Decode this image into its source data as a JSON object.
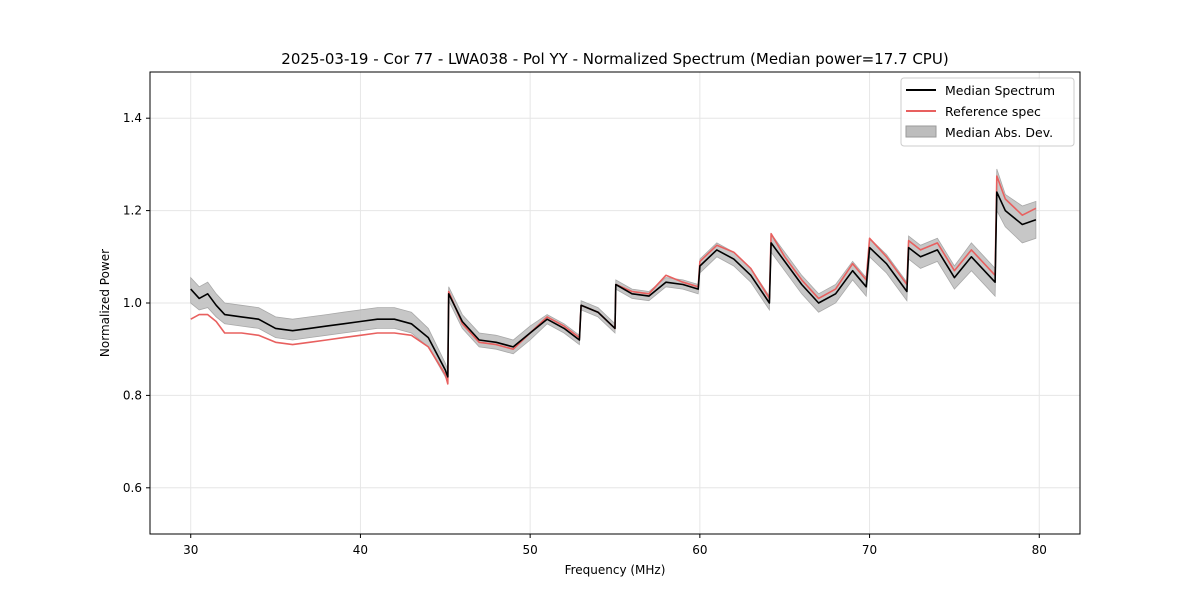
{
  "chart_data": {
    "type": "line",
    "title": "2025-03-19 - Cor 77 - LWA038 - Pol YY - Normalized Spectrum (Median power=17.7 CPU)",
    "xlabel": "Frequency (MHz)",
    "ylabel": "Normalized Power",
    "xlim": [
      27.6,
      82.4
    ],
    "ylim": [
      0.5,
      1.5
    ],
    "xticks": [
      30,
      40,
      50,
      60,
      70,
      80
    ],
    "yticks": [
      0.6,
      0.8,
      1.0,
      1.2,
      1.4
    ],
    "xtick_labels": [
      "30",
      "40",
      "50",
      "60",
      "70",
      "80"
    ],
    "ytick_labels": [
      "0.6",
      "0.8",
      "1.0",
      "1.2",
      "1.4"
    ],
    "grid": true,
    "legend_position": "top-right",
    "colors": {
      "median": "#000000",
      "reference": "#e8605f",
      "mad": "#bdbdbd"
    },
    "series": [
      {
        "name": "Median Spectrum",
        "x": [
          30.0,
          30.5,
          31.0,
          31.5,
          32.0,
          33.0,
          34.0,
          35.0,
          36.0,
          37.0,
          38.0,
          39.0,
          40.0,
          41.0,
          42.0,
          43.0,
          44.0,
          45.0,
          45.15,
          45.2,
          46.0,
          47.0,
          48.0,
          49.0,
          50.0,
          51.0,
          52.0,
          52.9,
          53.0,
          54.0,
          55.0,
          55.05,
          56.0,
          57.0,
          58.0,
          59.0,
          59.9,
          60.0,
          61.0,
          62.0,
          63.0,
          64.1,
          64.2,
          65.0,
          66.0,
          67.0,
          68.0,
          69.0,
          69.8,
          70.0,
          71.0,
          72.2,
          72.3,
          73.0,
          74.0,
          75.0,
          76.0,
          77.4,
          77.5,
          78.0,
          79.0,
          79.8
        ],
        "values": [
          1.03,
          1.01,
          1.02,
          0.995,
          0.975,
          0.97,
          0.965,
          0.945,
          0.94,
          0.945,
          0.95,
          0.955,
          0.96,
          0.965,
          0.965,
          0.955,
          0.925,
          0.855,
          0.84,
          1.02,
          0.96,
          0.92,
          0.915,
          0.905,
          0.935,
          0.965,
          0.945,
          0.92,
          0.995,
          0.98,
          0.945,
          1.04,
          1.02,
          1.015,
          1.045,
          1.04,
          1.03,
          1.08,
          1.115,
          1.095,
          1.06,
          1.0,
          1.13,
          1.09,
          1.04,
          1.0,
          1.02,
          1.07,
          1.035,
          1.12,
          1.085,
          1.025,
          1.12,
          1.1,
          1.115,
          1.055,
          1.1,
          1.045,
          1.24,
          1.2,
          1.17,
          1.18
        ]
      },
      {
        "name": "Reference spec",
        "x": [
          30.0,
          30.5,
          31.0,
          31.5,
          32.0,
          33.0,
          34.0,
          35.0,
          36.0,
          37.0,
          38.0,
          39.0,
          40.0,
          41.0,
          42.0,
          43.0,
          44.0,
          45.0,
          45.15,
          45.2,
          46.0,
          47.0,
          48.0,
          49.0,
          50.0,
          51.0,
          52.0,
          52.9,
          53.0,
          54.0,
          55.0,
          55.05,
          56.0,
          57.0,
          58.0,
          59.0,
          59.9,
          60.0,
          61.0,
          62.0,
          63.0,
          64.1,
          64.2,
          65.0,
          66.0,
          67.0,
          68.0,
          69.0,
          69.8,
          70.0,
          71.0,
          72.2,
          72.3,
          73.0,
          74.0,
          75.0,
          76.0,
          77.4,
          77.5,
          78.0,
          79.0,
          79.8
        ],
        "values": [
          0.965,
          0.975,
          0.975,
          0.96,
          0.935,
          0.935,
          0.93,
          0.915,
          0.91,
          0.915,
          0.92,
          0.925,
          0.93,
          0.935,
          0.935,
          0.93,
          0.905,
          0.845,
          0.825,
          1.025,
          0.955,
          0.915,
          0.91,
          0.9,
          0.935,
          0.97,
          0.95,
          0.925,
          0.995,
          0.98,
          0.945,
          1.04,
          1.025,
          1.02,
          1.06,
          1.045,
          1.035,
          1.09,
          1.125,
          1.11,
          1.075,
          1.01,
          1.15,
          1.1,
          1.05,
          1.01,
          1.03,
          1.085,
          1.05,
          1.14,
          1.1,
          1.04,
          1.135,
          1.115,
          1.13,
          1.07,
          1.115,
          1.06,
          1.275,
          1.225,
          1.19,
          1.205
        ]
      }
    ],
    "mad_band": {
      "name": "Median Abs. Dev.",
      "x": [
        30.0,
        30.5,
        31.0,
        31.5,
        32.0,
        33.0,
        34.0,
        35.0,
        36.0,
        37.0,
        38.0,
        39.0,
        40.0,
        41.0,
        42.0,
        43.0,
        44.0,
        45.0,
        45.15,
        45.2,
        46.0,
        47.0,
        48.0,
        49.0,
        50.0,
        51.0,
        52.0,
        52.9,
        53.0,
        54.0,
        55.0,
        55.05,
        56.0,
        57.0,
        58.0,
        59.0,
        59.9,
        60.0,
        61.0,
        62.0,
        63.0,
        64.1,
        64.2,
        65.0,
        66.0,
        67.0,
        68.0,
        69.0,
        69.8,
        70.0,
        71.0,
        72.2,
        72.3,
        73.0,
        74.0,
        75.0,
        76.0,
        77.4,
        77.5,
        78.0,
        79.0,
        79.8
      ],
      "lower": [
        1.0,
        0.985,
        0.99,
        0.97,
        0.955,
        0.95,
        0.945,
        0.925,
        0.92,
        0.925,
        0.93,
        0.935,
        0.94,
        0.945,
        0.945,
        0.935,
        0.905,
        0.84,
        0.83,
        1.005,
        0.945,
        0.905,
        0.9,
        0.89,
        0.92,
        0.955,
        0.935,
        0.91,
        0.985,
        0.97,
        0.935,
        1.03,
        1.01,
        1.005,
        1.035,
        1.03,
        1.02,
        1.065,
        1.1,
        1.08,
        1.045,
        0.985,
        1.11,
        1.07,
        1.02,
        0.98,
        1.0,
        1.05,
        1.015,
        1.1,
        1.065,
        1.005,
        1.095,
        1.075,
        1.09,
        1.03,
        1.07,
        1.015,
        1.2,
        1.165,
        1.13,
        1.14
      ],
      "upper": [
        1.055,
        1.035,
        1.045,
        1.02,
        1.0,
        0.995,
        0.99,
        0.97,
        0.965,
        0.97,
        0.975,
        0.98,
        0.985,
        0.99,
        0.99,
        0.98,
        0.945,
        0.87,
        0.855,
        1.035,
        0.975,
        0.935,
        0.93,
        0.92,
        0.95,
        0.975,
        0.955,
        0.93,
        1.005,
        0.99,
        0.955,
        1.05,
        1.03,
        1.025,
        1.055,
        1.05,
        1.04,
        1.095,
        1.13,
        1.11,
        1.075,
        1.015,
        1.15,
        1.11,
        1.06,
        1.02,
        1.04,
        1.09,
        1.055,
        1.14,
        1.105,
        1.045,
        1.145,
        1.125,
        1.14,
        1.08,
        1.13,
        1.075,
        1.29,
        1.235,
        1.21,
        1.22
      ]
    }
  }
}
